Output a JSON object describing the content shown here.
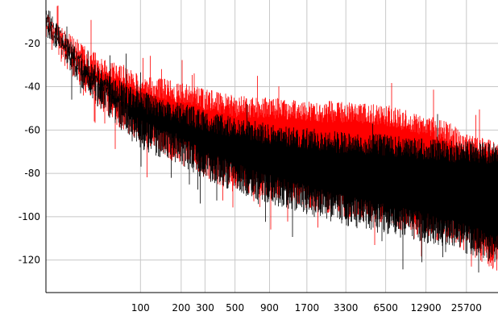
{
  "chart_data": {
    "type": "area",
    "title": "",
    "xlabel": "",
    "ylabel": "",
    "xscale": "log",
    "xlim": [
      20,
      44000
    ],
    "ylim": [
      -135,
      0
    ],
    "x_ticks": [
      {
        "value": 100,
        "label": "100"
      },
      {
        "value": 200,
        "label": "200"
      },
      {
        "value": 300,
        "label": "300"
      },
      {
        "value": 500,
        "label": "500"
      },
      {
        "value": 900,
        "label": "900"
      },
      {
        "value": 1700,
        "label": "1700"
      },
      {
        "value": 3300,
        "label": "3300"
      },
      {
        "value": 6500,
        "label": "6500"
      },
      {
        "value": 12900,
        "label": "12900"
      },
      {
        "value": 25700,
        "label": "25700"
      }
    ],
    "y_ticks": [
      {
        "value": -20,
        "label": "-20"
      },
      {
        "value": -40,
        "label": "-40"
      },
      {
        "value": -60,
        "label": "-60"
      },
      {
        "value": -80,
        "label": "-80"
      },
      {
        "value": -100,
        "label": "-100"
      },
      {
        "value": -120,
        "label": "-120"
      }
    ],
    "grid": true,
    "legend": "none",
    "series": [
      {
        "color": "#ff0000",
        "x": [
          20,
          40,
          70,
          100,
          200,
          300,
          500,
          900,
          1700,
          3300,
          6500,
          12900,
          20000,
          25700,
          44000
        ],
        "peak_db": [
          -5,
          -22,
          -30,
          -34,
          -38,
          -41,
          -44,
          -45,
          -46,
          -47,
          -48,
          -53,
          -57,
          -62,
          -64
        ],
        "floor_db": [
          -15,
          -40,
          -55,
          -62,
          -72,
          -78,
          -85,
          -88,
          -92,
          -96,
          -100,
          -106,
          -108,
          -112,
          -122
        ]
      },
      {
        "color": "#000000",
        "x": [
          20,
          40,
          70,
          100,
          200,
          300,
          500,
          900,
          1700,
          3300,
          6500,
          12900,
          20000,
          25700,
          44000
        ],
        "peak_db": [
          -5,
          -27,
          -37,
          -42,
          -47,
          -51,
          -54,
          -57,
          -59,
          -61,
          -62,
          -64,
          -65,
          -65,
          -66
        ],
        "floor_db": [
          -12,
          -40,
          -55,
          -65,
          -72,
          -79,
          -85,
          -90,
          -95,
          -100,
          -104,
          -108,
          -111,
          -113,
          -118
        ]
      }
    ]
  }
}
